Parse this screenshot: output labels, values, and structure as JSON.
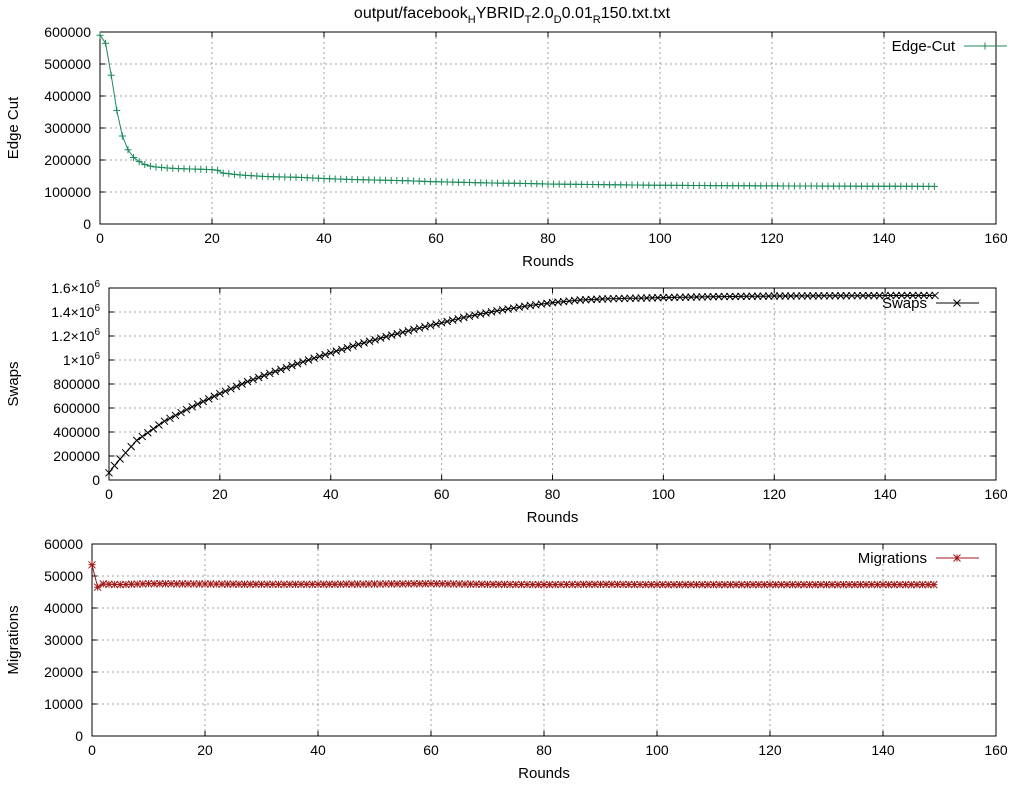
{
  "title": {
    "parts": [
      {
        "text": "output/facebook",
        "sub": false
      },
      {
        "text": "H",
        "sub": true
      },
      {
        "text": "YBRID",
        "sub": false
      },
      {
        "text": "T",
        "sub": true
      },
      {
        "text": "2.0",
        "sub": false
      },
      {
        "text": "D",
        "sub": true
      },
      {
        "text": "0.01",
        "sub": false
      },
      {
        "text": "R",
        "sub": true
      },
      {
        "text": "150.txt.txt",
        "sub": false
      }
    ]
  },
  "chart_data": [
    {
      "type": "line",
      "xlabel": "Rounds",
      "ylabel": "Edge Cut",
      "xlim": [
        0,
        160
      ],
      "ylim": [
        0,
        600000
      ],
      "xticks": [
        "0",
        "20",
        "40",
        "60",
        "80",
        "100",
        "120",
        "140",
        "160"
      ],
      "yticks": [
        "0",
        "100000",
        "200000",
        "300000",
        "400000",
        "500000",
        "600000"
      ],
      "grid": true,
      "legend": "top-right",
      "color": "#1a8a5a",
      "marker": "plus",
      "series": [
        {
          "name": "Edge-Cut",
          "x": [
            0,
            1,
            2,
            3,
            4,
            5,
            6,
            7,
            8,
            9,
            10,
            12,
            14,
            16,
            18,
            20,
            21,
            22,
            24,
            26,
            28,
            30,
            35,
            40,
            45,
            50,
            55,
            60,
            65,
            70,
            75,
            80,
            85,
            90,
            95,
            100,
            110,
            120,
            130,
            140,
            149
          ],
          "y": [
            590000,
            565000,
            465000,
            355000,
            275000,
            232000,
            208000,
            195000,
            186000,
            181000,
            178000,
            175000,
            173000,
            172000,
            171000,
            170000,
            168000,
            159000,
            155000,
            152000,
            150000,
            148000,
            146000,
            142000,
            139000,
            137000,
            135000,
            132000,
            130000,
            128000,
            127000,
            125000,
            124000,
            123000,
            122000,
            121000,
            120000,
            119000,
            118500,
            118000,
            117500
          ]
        }
      ]
    },
    {
      "type": "line",
      "xlabel": "Rounds",
      "ylabel": "Swaps",
      "xlim": [
        0,
        160
      ],
      "ylim": [
        0,
        1600000
      ],
      "xticks": [
        "0",
        "20",
        "40",
        "60",
        "80",
        "100",
        "120",
        "140",
        "160"
      ],
      "yticks": [
        {
          "label": "0"
        },
        {
          "label": "200000"
        },
        {
          "label": "400000"
        },
        {
          "label": "600000"
        },
        {
          "label": "800000"
        },
        {
          "mant": "1×10",
          "exp": "6"
        },
        {
          "mant": "1.2×10",
          "exp": "6"
        },
        {
          "mant": "1.4×10",
          "exp": "6"
        },
        {
          "mant": "1.6×10",
          "exp": "6"
        }
      ],
      "grid": true,
      "legend": "top-right",
      "color": "#000000",
      "marker": "cross",
      "series": [
        {
          "name": "Swaps",
          "x": [
            0,
            1,
            2,
            5,
            10,
            15,
            20,
            25,
            30,
            35,
            40,
            45,
            50,
            55,
            60,
            65,
            70,
            75,
            80,
            85,
            90,
            100,
            110,
            120,
            130,
            140,
            149
          ],
          "y": [
            60000,
            120000,
            175000,
            330000,
            490000,
            610000,
            720000,
            820000,
            905000,
            985000,
            1060000,
            1130000,
            1195000,
            1255000,
            1310000,
            1365000,
            1410000,
            1448000,
            1478000,
            1500000,
            1510000,
            1520000,
            1528000,
            1533000,
            1535000,
            1537000,
            1538000
          ]
        }
      ]
    },
    {
      "type": "line",
      "xlabel": "Rounds",
      "ylabel": "Migrations",
      "xlim": [
        0,
        160
      ],
      "ylim": [
        0,
        60000
      ],
      "xticks": [
        "0",
        "20",
        "40",
        "60",
        "80",
        "100",
        "120",
        "140",
        "160"
      ],
      "yticks": [
        "0",
        "10000",
        "20000",
        "30000",
        "40000",
        "50000",
        "60000"
      ],
      "grid": true,
      "legend": "top-right",
      "color": "#a01818",
      "marker": "star",
      "series": [
        {
          "name": "Migrations",
          "x": [
            0,
            1,
            2,
            5,
            10,
            20,
            30,
            40,
            50,
            60,
            70,
            80,
            90,
            100,
            110,
            120,
            130,
            140,
            149
          ],
          "y": [
            53500,
            46500,
            47500,
            47300,
            47600,
            47500,
            47400,
            47400,
            47500,
            47600,
            47400,
            47300,
            47400,
            47300,
            47300,
            47300,
            47300,
            47300,
            47300
          ]
        }
      ]
    }
  ]
}
